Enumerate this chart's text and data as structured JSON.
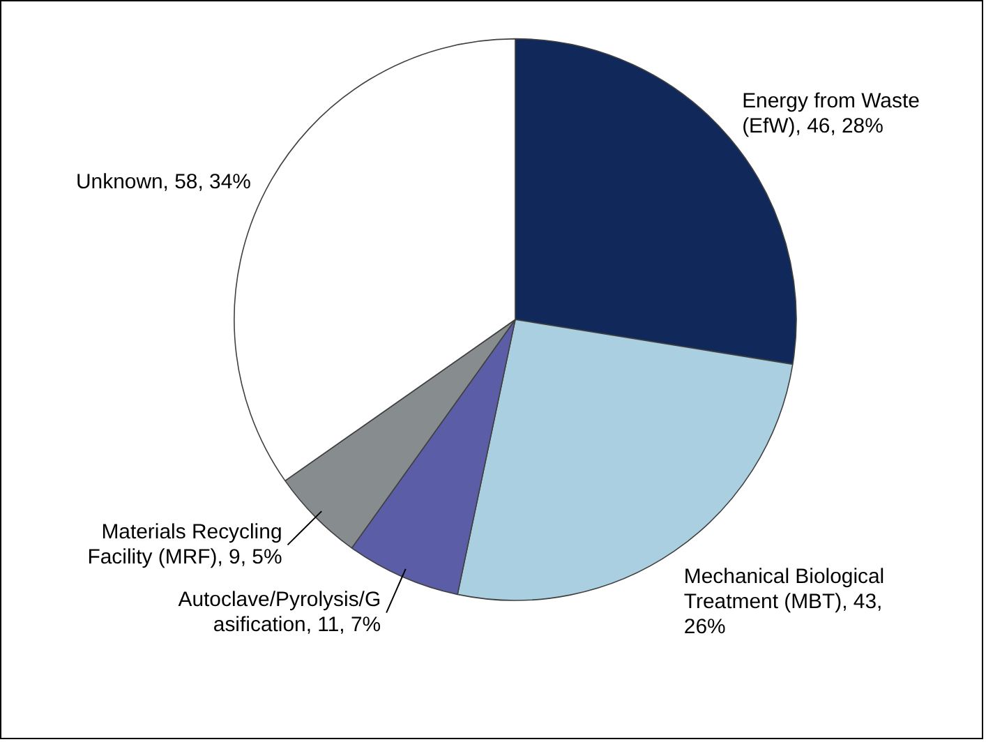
{
  "chart_data": {
    "type": "pie",
    "categories": [
      "Energy from Waste (EfW)",
      "Mechanical Biological Treatment (MBT)",
      "Autoclave/Pyrolysis/Gasification",
      "Materials Recycling Facility (MRF)",
      "Unknown"
    ],
    "values": [
      46,
      43,
      11,
      9,
      58
    ],
    "colors": [
      "#10295a",
      "#a9cfe0",
      "#5b5ea6",
      "#878c8f",
      "#ffffff"
    ],
    "value_labels": [
      "46, 28%",
      "43, 26%",
      "11, 7%",
      "9, 5%",
      "58, 34%"
    ],
    "legend": false
  }
}
